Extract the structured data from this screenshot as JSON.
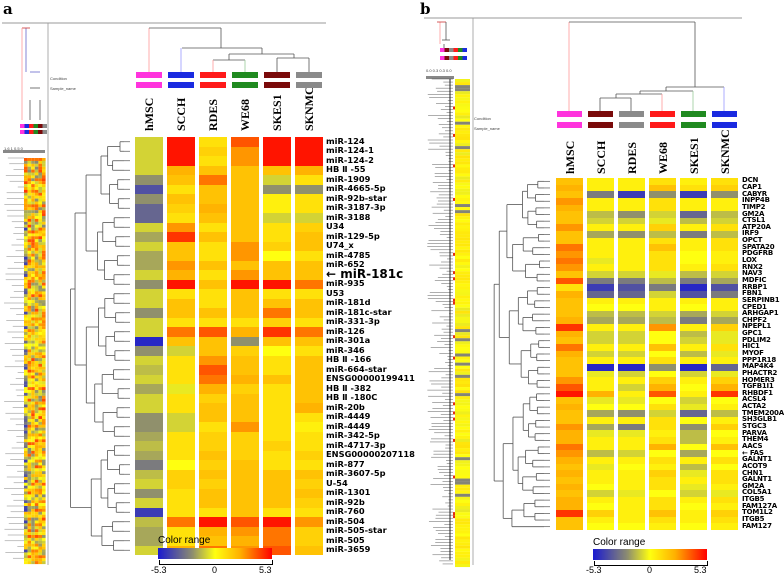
{
  "panels": {
    "a": "a",
    "b": "b"
  },
  "tiny": {
    "condition": "Condition",
    "sample_name": "Sample_name",
    "a_scale": "1.6 1 0.5 0",
    "b_scale": "0.0 0.3   0.3 0.0"
  },
  "colorbar": {
    "title": "Color range",
    "min": "-5.3",
    "mid": "0",
    "max": "5.3"
  },
  "colors": {
    "hMSC": "#ff33dd",
    "SCCH_a": "#1a2ae0",
    "RDES_a": "#ff1a1a",
    "WE68_a": "#208a20",
    "SKES1_a": "#7a0a0a",
    "SKNMC_a": "#8a8a8a"
  },
  "chart_data": [
    {
      "type": "heatmap",
      "title": "a",
      "colorbar_range": [
        -5.3,
        5.3
      ],
      "columns": [
        "hMSC",
        "SCCH",
        "RDES",
        "WE68",
        "SKES1",
        "SKNMC"
      ],
      "condition_colors": [
        "#ff33dd",
        "#1a2ae0",
        "#ff1a1a",
        "#208a20",
        "#7a0a0a",
        "#8a8a8a"
      ],
      "annotation": "← miR-181c",
      "rows": [
        "miR-124",
        "miR-124-1",
        "miR-124-2",
        "HB Ⅱ -55",
        "miR-1909",
        "miR-4665-5p",
        "miR-92b-star",
        "miR-3187-3p",
        "miR-3188",
        "U34",
        "miR-129-5p",
        "U74_x",
        "miR-4785",
        "miR-652",
        "miR-181c",
        "miR-935",
        "U53",
        "miR-181d",
        "miR-181c-star",
        "miR-331-3p",
        "miR-126",
        "miR-301a",
        "miR-346",
        "HB Ⅱ -166",
        "miR-664-star",
        "ENSG00000199411",
        "HB Ⅱ -382",
        "HB Ⅱ -180C",
        "miR-20b",
        "miR-4449",
        "miR-4449",
        "miR-342-5p",
        "miR-4717-3p",
        "ENSG00000207118",
        "miR-877",
        "miR-3607-5p",
        "U-54",
        "miR-1301",
        "miR-92b",
        "miR-760",
        "miR-504",
        "miR-505-star",
        "miR-505",
        "miR-3659"
      ],
      "values": [
        [
          -1,
          5,
          1,
          4,
          5,
          5
        ],
        [
          -1,
          5,
          1.5,
          3,
          5,
          5
        ],
        [
          -1,
          5,
          1,
          3,
          5,
          5
        ],
        [
          -1,
          2.5,
          2,
          2,
          2,
          2.5
        ],
        [
          -2.5,
          2,
          3.5,
          2,
          -1,
          1
        ],
        [
          -4,
          1,
          2,
          2,
          -2.5,
          -2.5
        ],
        [
          -2.5,
          2,
          2,
          2,
          0.5,
          1
        ],
        [
          -3.5,
          1.5,
          2.5,
          2,
          0.5,
          1
        ],
        [
          -3.5,
          1,
          2,
          2,
          -1,
          -1
        ],
        [
          -1,
          3,
          1,
          2,
          1,
          1.5
        ],
        [
          -2,
          4.5,
          2,
          2,
          1,
          2
        ],
        [
          -1,
          2,
          1,
          3,
          1.5,
          2
        ],
        [
          -2,
          2,
          1,
          3,
          0,
          1
        ],
        [
          -2,
          3,
          2,
          2,
          2,
          2
        ],
        [
          -1,
          2.5,
          1,
          3,
          2,
          2
        ],
        [
          -2.5,
          5,
          2,
          5,
          5,
          3.5
        ],
        [
          -1,
          1,
          1,
          2,
          1,
          1
        ],
        [
          -1,
          2,
          1,
          2,
          2,
          2
        ],
        [
          -2.5,
          2,
          2,
          2,
          3.5,
          2
        ],
        [
          -1,
          1,
          1,
          1,
          1.5,
          1
        ],
        [
          -1,
          3.5,
          4,
          2.5,
          4.5,
          3.5
        ],
        [
          -5,
          2,
          2,
          -2.5,
          2,
          2
        ],
        [
          -2.5,
          -1,
          2,
          1.5,
          0,
          1
        ],
        [
          -1,
          1,
          3,
          2,
          1,
          2
        ],
        [
          -1.5,
          1,
          4,
          2,
          1,
          2
        ],
        [
          -1,
          1,
          3.5,
          2.5,
          2,
          2
        ],
        [
          -2,
          -0.5,
          2.5,
          1.5,
          1,
          2
        ],
        [
          -1,
          1,
          1.5,
          2,
          1,
          2
        ],
        [
          -1,
          1,
          2,
          2,
          1,
          2.5
        ],
        [
          -2.5,
          -1,
          2,
          2,
          1,
          1
        ],
        [
          -2.5,
          -1,
          1,
          3,
          1,
          0.5
        ],
        [
          -2,
          1,
          1.5,
          1.5,
          1,
          1
        ],
        [
          -1.5,
          1,
          1.5,
          1.5,
          1.5,
          1
        ],
        [
          -2,
          1,
          2,
          1.5,
          1,
          1.5
        ],
        [
          -3,
          0,
          1.5,
          2,
          1,
          1
        ],
        [
          -1.5,
          1.5,
          2,
          2,
          2,
          2
        ],
        [
          -1,
          1.5,
          1.5,
          2,
          2,
          1.5
        ],
        [
          -2.5,
          1,
          2,
          2,
          2,
          2
        ],
        [
          -1,
          1,
          2,
          2,
          2,
          1.5
        ],
        [
          -4.5,
          1,
          1,
          2,
          1,
          1
        ],
        [
          -1.5,
          3.5,
          5,
          4,
          5,
          3
        ],
        [
          -2,
          1,
          2.5,
          3,
          3.5,
          1.5
        ],
        [
          -2,
          1,
          2,
          2.5,
          3.5,
          1.5
        ],
        [
          -1,
          2.5,
          3.5,
          3,
          4,
          2
        ]
      ]
    },
    {
      "type": "heatmap",
      "title": "b",
      "colorbar_range": [
        -5.3,
        5.3
      ],
      "columns": [
        "hMSC",
        "SCCH",
        "RDES",
        "WE68",
        "SKES1",
        "SKNMC"
      ],
      "condition_colors": [
        "#ff33dd",
        "#7a0a0a",
        "#8a8a8a",
        "#ff1a1a",
        "#208a20",
        "#1a2ae0"
      ],
      "annotation": "← FAS",
      "rows": [
        "DCN",
        "CAP1",
        "CABYR",
        "INPP4B",
        "TIMP2",
        "GM2A",
        "CTSL1",
        "ATP20A",
        "IRF9",
        "OPCT",
        "SPATA20",
        "PDGFRB",
        "LOX",
        "RNX2",
        "NAV3",
        "MDFIC",
        "RRBP1",
        "FBN1",
        "SERPINB1",
        "CPED1",
        "ARHGAP1",
        "CHPF2",
        "NPEPL1",
        "GPC1",
        "PDLIM2",
        "HIC1",
        "MYOF",
        "PPP1R18",
        "MAP4K4",
        "PHACTR2",
        "HOMER3",
        "TGFB1I1",
        "RHBDF1",
        "ACSL4",
        "ACTA2",
        "TMEM200A",
        "SH3GLB1",
        "STGC3",
        "PARVA",
        "THEM4",
        "AACS",
        "FAS",
        "GALNT1",
        "ACOT9",
        "CHN1",
        "GALNT1",
        "GM2A",
        "COL5A1",
        "ITGB5",
        "FAM127A",
        "TOM1L2",
        "ITGB5",
        "FAM127"
      ],
      "values": [
        [
          2,
          0.5,
          0.5,
          1,
          0.5,
          1
        ],
        [
          2.5,
          0.5,
          0.5,
          2,
          1,
          1.5
        ],
        [
          2,
          -3,
          -4.5,
          -2.5,
          -4.5,
          -2.5
        ],
        [
          3,
          0.5,
          0.5,
          1,
          0.5,
          0.5
        ],
        [
          2.5,
          0.5,
          0.5,
          1,
          0.5,
          0.5
        ],
        [
          2,
          -1.5,
          -2.5,
          -1,
          -3.5,
          -1.5
        ],
        [
          2,
          -1,
          -1,
          -0.5,
          -1.5,
          -1
        ],
        [
          3,
          0.5,
          0.5,
          1.5,
          0.5,
          1
        ],
        [
          2,
          -2,
          -2.5,
          -1.5,
          -3,
          -1.5
        ],
        [
          2,
          0.5,
          0.5,
          1,
          0.5,
          1
        ],
        [
          3.5,
          0.5,
          0.5,
          2,
          0.5,
          1
        ],
        [
          3,
          0.5,
          0.5,
          1,
          0,
          0.5
        ],
        [
          3.5,
          -0.5,
          0.5,
          1,
          0,
          0.5
        ],
        [
          3,
          0.5,
          0.5,
          1,
          0.5,
          1
        ],
        [
          2,
          -1,
          -1,
          -0.5,
          -1.5,
          -1
        ],
        [
          4,
          -3,
          -3,
          -1.5,
          -3,
          -2
        ],
        [
          1,
          -4.5,
          -4,
          -3,
          -5,
          -4
        ],
        [
          2.5,
          -3.5,
          -3.5,
          -1,
          -4,
          -3
        ],
        [
          2,
          0.5,
          0.5,
          0.5,
          0.5,
          0.5
        ],
        [
          2,
          0,
          0,
          0.5,
          0,
          0.5
        ],
        [
          2,
          -1.5,
          -1.5,
          -1,
          -2,
          -1
        ],
        [
          2.5,
          -2,
          -2,
          -1.5,
          -3,
          -2
        ],
        [
          4.5,
          0.5,
          0.5,
          3,
          0.5,
          1.5
        ],
        [
          2.5,
          -1,
          -1,
          0,
          -1.5,
          -0.5
        ],
        [
          2,
          -1,
          -1,
          0,
          -1,
          -0.5
        ],
        [
          3.5,
          0.5,
          0.5,
          2,
          0.5,
          1
        ],
        [
          2.5,
          -1,
          -1,
          0,
          -1.5,
          -0.5
        ],
        [
          2,
          0.5,
          0.5,
          1,
          0.5,
          0.5
        ],
        [
          2,
          -5,
          -5,
          -2.5,
          -5,
          -3.5
        ],
        [
          2,
          -0.5,
          -1,
          0,
          -1,
          -0.5
        ],
        [
          3,
          0.5,
          0.5,
          1.5,
          0.5,
          1.5
        ],
        [
          4,
          0.5,
          -1,
          2.5,
          0,
          2.5
        ],
        [
          5,
          2.5,
          0.5,
          4,
          0.5,
          4.5
        ],
        [
          2,
          -0.5,
          -0.5,
          0,
          -1,
          0
        ],
        [
          2.5,
          0,
          0,
          1,
          -0.5,
          0.5
        ],
        [
          2,
          -2,
          -2.5,
          -1,
          -3.5,
          -1.5
        ],
        [
          2,
          0.5,
          0.5,
          1,
          0,
          0.5
        ],
        [
          3,
          -2,
          -3,
          1,
          -2.5,
          1.5
        ],
        [
          2.5,
          -0.5,
          -0.5,
          0.5,
          -1.5,
          0
        ],
        [
          2.5,
          0.5,
          0.5,
          1,
          -1.5,
          0.5
        ],
        [
          3.5,
          0.5,
          0.5,
          2.5,
          0,
          2
        ],
        [
          3,
          -1.5,
          -1,
          0,
          -2,
          0
        ],
        [
          2.5,
          0.5,
          0.5,
          1,
          0.5,
          1
        ],
        [
          2,
          -0.5,
          0,
          0.5,
          -1.5,
          0
        ],
        [
          2.5,
          0.5,
          0.5,
          1.5,
          -0.5,
          1
        ],
        [
          2,
          0.5,
          0.5,
          1,
          0.5,
          1
        ],
        [
          2.5,
          0,
          0.5,
          1,
          -0.5,
          0.5
        ],
        [
          2,
          -1,
          -0.5,
          0,
          -1,
          -0.5
        ],
        [
          2.5,
          0.5,
          0.5,
          1,
          0.5,
          1
        ],
        [
          2.5,
          0,
          0.5,
          1,
          0,
          0.5
        ],
        [
          4.5,
          1.5,
          0.5,
          2,
          0.5,
          1.5
        ],
        [
          2,
          0.5,
          0.5,
          1,
          0.5,
          1
        ],
        [
          2,
          0,
          0,
          0.5,
          0,
          0.5
        ]
      ]
    }
  ]
}
